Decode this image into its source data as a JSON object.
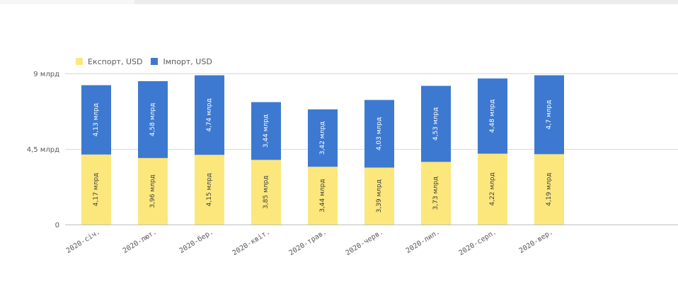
{
  "chart_data": {
    "type": "bar",
    "stacked": true,
    "categories": [
      "2020-січ.",
      "2020-лют.",
      "2020-бер.",
      "2020-квіт.",
      "2020-трав.",
      "2020-черв.",
      "2020-лип.",
      "2020-серп.",
      "2020-вер."
    ],
    "series": [
      {
        "name": "Експорт, USD",
        "color": "#fce77c",
        "values": [
          4.17,
          3.96,
          4.15,
          3.85,
          3.44,
          3.39,
          3.73,
          4.22,
          4.19
        ],
        "labels": [
          "4,17 млрд",
          "3,96 млрд",
          "4,15 млрд",
          "3,85 млрд",
          "3,44 млрд",
          "3,39 млрд",
          "3,73 млрд",
          "4,22 млрд",
          "4,19 млрд"
        ]
      },
      {
        "name": "Імпорт, USD",
        "color": "#3d79d0",
        "values": [
          4.13,
          4.58,
          4.74,
          3.44,
          3.42,
          4.03,
          4.53,
          4.48,
          4.7
        ],
        "labels": [
          "4,13 млрд",
          "4,58 млрд",
          "4,74 млрд",
          "3,44 млрд",
          "3,42 млрд",
          "4,03 млрд",
          "4,53 млрд",
          "4,48 млрд",
          "4,7 млрд"
        ]
      }
    ],
    "yticks": [
      {
        "value": 0,
        "label": "0"
      },
      {
        "value": 4.5,
        "label": "4,5 млрд"
      },
      {
        "value": 9,
        "label": "9 млрд"
      }
    ],
    "ylim": [
      0,
      9
    ],
    "legend_position": "top-left",
    "grid": true
  }
}
